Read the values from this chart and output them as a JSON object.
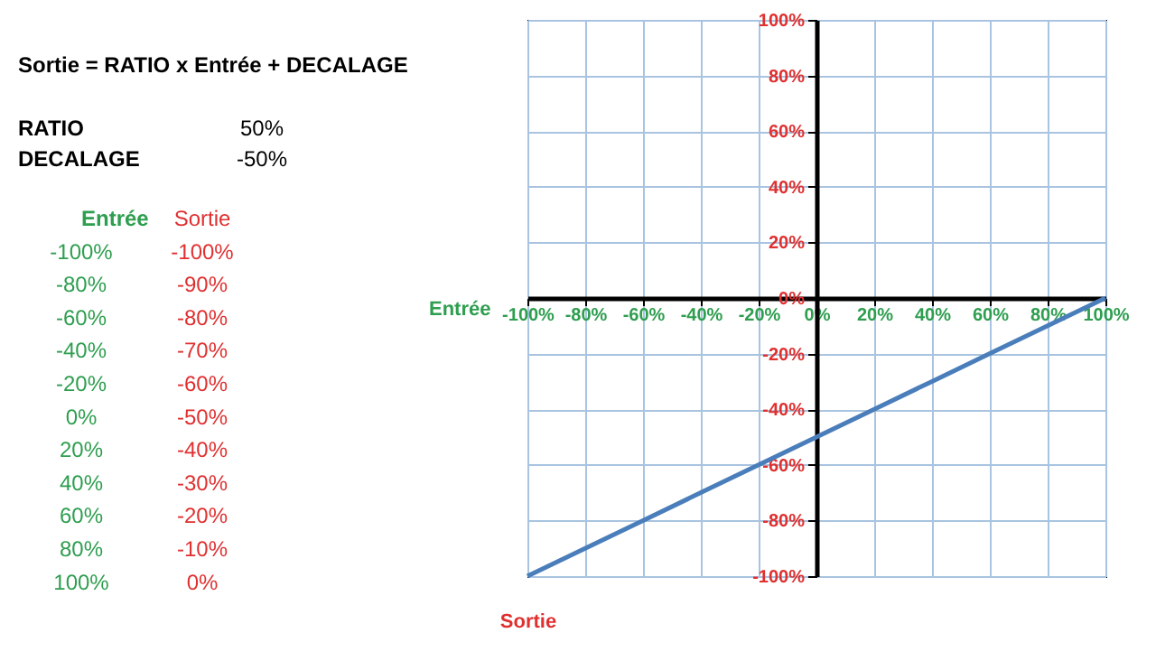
{
  "chart_data": {
    "type": "line",
    "title": "Sortie = RATIO x Entrée + DECALAGE",
    "xlabel": "Entrée",
    "ylabel": "Sortie",
    "annotations": [
      "RATIO",
      "50%",
      "DECALAGE",
      "-50%",
      "-100%",
      "-80%",
      "-60%",
      "-40%",
      "-20%",
      "0%",
      "20%",
      "40%",
      "60%",
      "80%",
      "100%",
      "-100%",
      "-90%",
      "-80%",
      "-70%",
      "-60%",
      "-50%",
      "-40%",
      "-30%",
      "-20%",
      "-10%",
      "0%"
    ],
    "x": [
      -100,
      -80,
      -60,
      -40,
      -20,
      0,
      20,
      40,
      60,
      80,
      100
    ],
    "series": [
      {
        "color": "#4a7ebb",
        "values": [
          -100,
          -90,
          -80,
          -70,
          -60,
          -50,
          -40,
          -30,
          -20,
          -10,
          0
        ]
      }
    ],
    "xlim": [
      -100,
      100
    ],
    "ylim": [
      -100,
      100
    ],
    "xticks": [
      {
        "value": -100,
        "label": "-100%"
      },
      {
        "value": -80,
        "label": "-80%"
      },
      {
        "value": -60,
        "label": "-60%"
      },
      {
        "value": -40,
        "label": "-40%"
      },
      {
        "value": -20,
        "label": "-20%"
      },
      {
        "value": 0,
        "label": "0%"
      },
      {
        "value": 20,
        "label": "20%"
      },
      {
        "value": 40,
        "label": "40%"
      },
      {
        "value": 60,
        "label": "60%"
      },
      {
        "value": 80,
        "label": "80%"
      },
      {
        "value": 100,
        "label": "100%"
      }
    ],
    "yticks": [
      {
        "value": -100,
        "label": "-100%"
      },
      {
        "value": -80,
        "label": "-80%"
      },
      {
        "value": -60,
        "label": "-60%"
      },
      {
        "value": -40,
        "label": "-40%"
      },
      {
        "value": -20,
        "label": "-20%"
      },
      {
        "value": 0,
        "label": "0%"
      },
      {
        "value": 20,
        "label": "20%"
      },
      {
        "value": 40,
        "label": "40%"
      },
      {
        "value": 60,
        "label": "60%"
      },
      {
        "value": 80,
        "label": "80%"
      },
      {
        "value": 100,
        "label": "100%"
      }
    ],
    "grid": true,
    "marker": "none",
    "line_style": "solid"
  }
}
